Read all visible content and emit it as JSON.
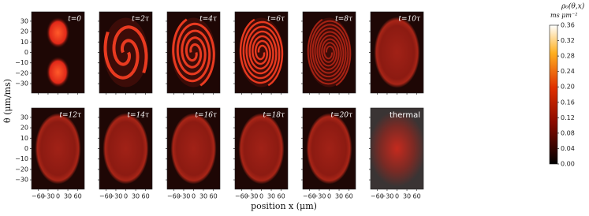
{
  "chart_data": {
    "type": "heatmap-grid",
    "panels": [
      "t=0",
      "t=2τ",
      "t=4τ",
      "t=6τ",
      "t=8τ",
      "t=10τ",
      "t=12τ",
      "t=14τ",
      "t=16τ",
      "t=18τ",
      "t=20τ",
      "thermal"
    ],
    "x_label": "position x (μm)",
    "y_label": "θ (μm/ms)",
    "xlim": [
      -80,
      80
    ],
    "xticks": [
      {
        "value": -60,
        "label": "−60"
      },
      {
        "value": -30,
        "label": "−30"
      },
      0,
      30,
      60
    ],
    "ylim": [
      -39,
      39
    ],
    "yticks": [
      30,
      20,
      10,
      0,
      {
        "value": -10,
        "label": "−10"
      },
      {
        "value": -20,
        "label": "−20"
      },
      {
        "value": -30,
        "label": "−30"
      }
    ],
    "colorbar": {
      "label": "ρ₀(θ,x)",
      "units": "ms μm⁻²",
      "clim": [
        0,
        0.36
      ],
      "ticks": [
        {
          "value": 0,
          "label": "0.00"
        },
        {
          "value": 0.04,
          "label": "0.04"
        },
        {
          "value": 0.08,
          "label": "0.08"
        },
        {
          "value": 0.12,
          "label": "0.12"
        },
        {
          "value": 0.16,
          "label": "0.16"
        },
        {
          "value": 0.2,
          "label": "0.20"
        },
        {
          "value": 0.24,
          "label": "0.24"
        },
        {
          "value": 0.28,
          "label": "0.28"
        },
        {
          "value": 0.32,
          "label": "0.32"
        },
        {
          "value": 0.36,
          "label": "0.36"
        }
      ]
    }
  }
}
